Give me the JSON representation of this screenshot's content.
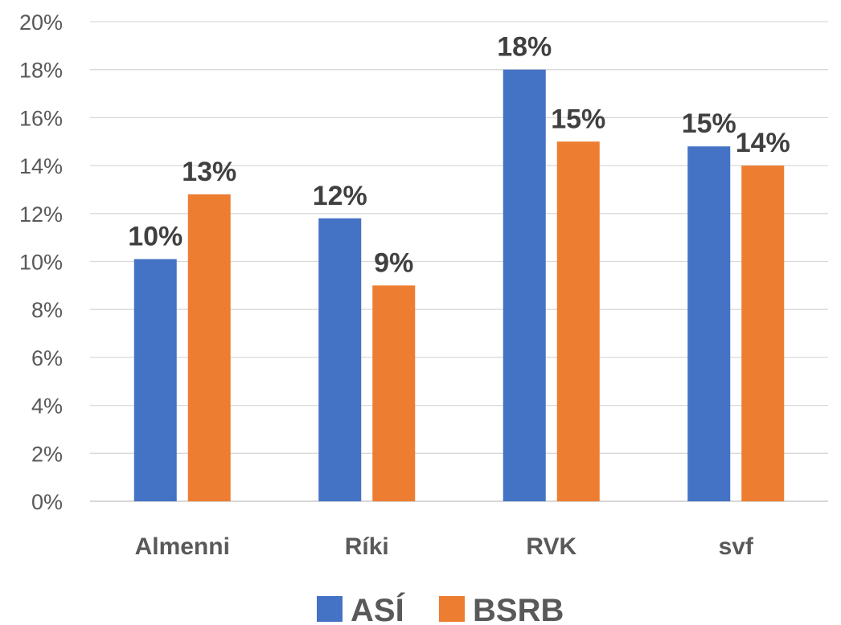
{
  "chart_data": {
    "type": "bar",
    "categories": [
      "Almenni",
      "Ríki",
      "RVK",
      "svf"
    ],
    "series": [
      {
        "name": "ASÍ",
        "color": "#4472C4",
        "values": [
          0.101,
          0.118,
          0.18,
          0.148
        ],
        "labels": [
          "10%",
          "12%",
          "18%",
          "15%"
        ]
      },
      {
        "name": "BSRB",
        "color": "#ED7D31",
        "values": [
          0.128,
          0.09,
          0.15,
          0.14
        ],
        "labels": [
          "13%",
          "9%",
          "15%",
          "14%"
        ]
      }
    ],
    "ylim": [
      0,
      0.2
    ],
    "yticks": [
      "0%",
      "2%",
      "4%",
      "6%",
      "8%",
      "10%",
      "12%",
      "14%",
      "16%",
      "18%",
      "20%"
    ],
    "grid": true,
    "legend_position": "bottom"
  }
}
